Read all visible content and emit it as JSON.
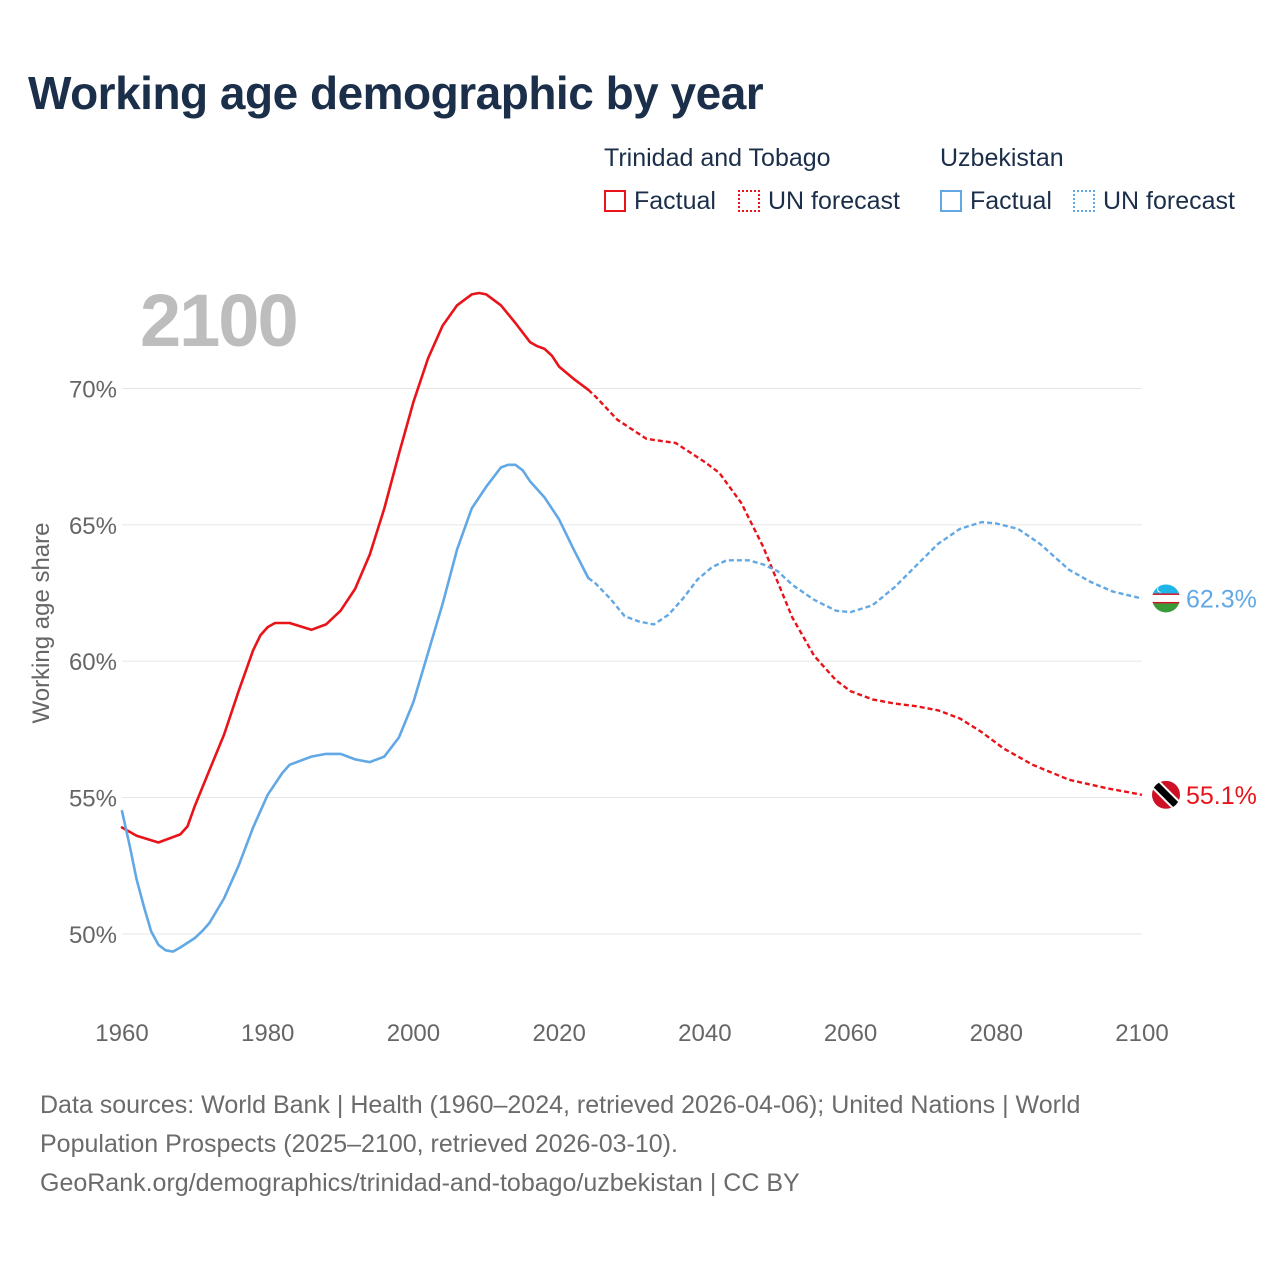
{
  "title": "Working age demographic by year",
  "current_year": "2100",
  "ylabel": "Working age share",
  "legend": {
    "groups": [
      {
        "name": "Trinidad and Tobago",
        "factual": "Factual",
        "forecast": "UN forecast",
        "color": "#e8141a"
      },
      {
        "name": "Uzbekistan",
        "factual": "Factual",
        "forecast": "UN forecast",
        "color": "#62a8e5"
      }
    ]
  },
  "end_labels": {
    "uzbekistan": "62.3%",
    "trinidad": "55.1%"
  },
  "footer": {
    "line1": "Data sources: World Bank | Health (1960–2024, retrieved 2026-04-06); United Nations | World",
    "line2": "Population Prospects (2025–2100, retrieved 2026-03-10).",
    "line3": "GeoRank.org/demographics/trinidad-and-tobago/uzbekistan | CC BY"
  },
  "colors": {
    "trinidad": "#e8141a",
    "uzbekistan": "#62a8e5",
    "grid": "#e6e6e6",
    "axis_text": "#666666"
  },
  "chart_data": {
    "type": "line",
    "title": "Working age demographic by year",
    "xlabel": "",
    "ylabel": "Working age share",
    "xlim": [
      1960,
      2100
    ],
    "ylim": [
      48,
      74
    ],
    "x_ticks": [
      1960,
      1980,
      2000,
      2020,
      2040,
      2060,
      2080,
      2100
    ],
    "y_ticks": [
      50,
      55,
      60,
      65,
      70
    ],
    "y_tick_labels": [
      "50%",
      "55%",
      "60%",
      "65%",
      "70%"
    ],
    "factual_range": [
      1960,
      2024
    ],
    "forecast_range": [
      2025,
      2100
    ],
    "series": [
      {
        "name": "Trinidad and Tobago",
        "points": [
          [
            1960,
            53.9
          ],
          [
            1962,
            53.6
          ],
          [
            1965,
            53.35
          ],
          [
            1968,
            53.65
          ],
          [
            1969,
            53.95
          ],
          [
            1970,
            54.7
          ],
          [
            1972,
            56.0
          ],
          [
            1974,
            57.3
          ],
          [
            1976,
            58.9
          ],
          [
            1978,
            60.4
          ],
          [
            1979,
            60.95
          ],
          [
            1980,
            61.25
          ],
          [
            1981,
            61.4
          ],
          [
            1983,
            61.4
          ],
          [
            1986,
            61.15
          ],
          [
            1988,
            61.35
          ],
          [
            1990,
            61.85
          ],
          [
            1992,
            62.65
          ],
          [
            1994,
            63.9
          ],
          [
            1996,
            65.6
          ],
          [
            1998,
            67.6
          ],
          [
            2000,
            69.5
          ],
          [
            2002,
            71.1
          ],
          [
            2004,
            72.3
          ],
          [
            2006,
            73.05
          ],
          [
            2008,
            73.45
          ],
          [
            2009,
            73.5
          ],
          [
            2010,
            73.45
          ],
          [
            2012,
            73.05
          ],
          [
            2014,
            72.4
          ],
          [
            2016,
            71.7
          ],
          [
            2017,
            71.55
          ],
          [
            2018,
            71.45
          ],
          [
            2019,
            71.2
          ],
          [
            2020,
            70.8
          ],
          [
            2022,
            70.35
          ],
          [
            2024,
            69.95
          ],
          [
            2025,
            69.7
          ],
          [
            2028,
            68.85
          ],
          [
            2032,
            68.15
          ],
          [
            2036,
            68.0
          ],
          [
            2040,
            67.3
          ],
          [
            2042,
            66.9
          ],
          [
            2045,
            65.8
          ],
          [
            2048,
            64.2
          ],
          [
            2050,
            62.9
          ],
          [
            2052,
            61.6
          ],
          [
            2055,
            60.2
          ],
          [
            2058,
            59.3
          ],
          [
            2060,
            58.9
          ],
          [
            2063,
            58.6
          ],
          [
            2066,
            58.45
          ],
          [
            2069,
            58.35
          ],
          [
            2072,
            58.2
          ],
          [
            2075,
            57.9
          ],
          [
            2078,
            57.4
          ],
          [
            2081,
            56.8
          ],
          [
            2085,
            56.2
          ],
          [
            2090,
            55.65
          ],
          [
            2095,
            55.35
          ],
          [
            2100,
            55.1
          ]
        ]
      },
      {
        "name": "Uzbekistan",
        "points": [
          [
            1960,
            54.5
          ],
          [
            1961,
            53.3
          ],
          [
            1962,
            52.0
          ],
          [
            1963,
            51.0
          ],
          [
            1964,
            50.1
          ],
          [
            1965,
            49.6
          ],
          [
            1966,
            49.4
          ],
          [
            1967,
            49.35
          ],
          [
            1968,
            49.5
          ],
          [
            1970,
            49.85
          ],
          [
            1971,
            50.1
          ],
          [
            1972,
            50.4
          ],
          [
            1974,
            51.3
          ],
          [
            1976,
            52.5
          ],
          [
            1978,
            53.9
          ],
          [
            1980,
            55.1
          ],
          [
            1982,
            55.9
          ],
          [
            1983,
            56.2
          ],
          [
            1986,
            56.5
          ],
          [
            1988,
            56.6
          ],
          [
            1990,
            56.6
          ],
          [
            1992,
            56.4
          ],
          [
            1994,
            56.3
          ],
          [
            1996,
            56.5
          ],
          [
            1998,
            57.2
          ],
          [
            2000,
            58.5
          ],
          [
            2002,
            60.3
          ],
          [
            2004,
            62.1
          ],
          [
            2006,
            64.1
          ],
          [
            2008,
            65.6
          ],
          [
            2010,
            66.4
          ],
          [
            2012,
            67.1
          ],
          [
            2013,
            67.2
          ],
          [
            2014,
            67.2
          ],
          [
            2015,
            67.0
          ],
          [
            2016,
            66.6
          ],
          [
            2018,
            66.0
          ],
          [
            2020,
            65.2
          ],
          [
            2022,
            64.1
          ],
          [
            2024,
            63.05
          ],
          [
            2025,
            62.85
          ],
          [
            2027,
            62.3
          ],
          [
            2029,
            61.65
          ],
          [
            2031,
            61.45
          ],
          [
            2033,
            61.35
          ],
          [
            2035,
            61.7
          ],
          [
            2037,
            62.3
          ],
          [
            2039,
            63.0
          ],
          [
            2041,
            63.45
          ],
          [
            2043,
            63.7
          ],
          [
            2046,
            63.7
          ],
          [
            2048,
            63.55
          ],
          [
            2050,
            63.3
          ],
          [
            2052,
            62.8
          ],
          [
            2055,
            62.25
          ],
          [
            2058,
            61.85
          ],
          [
            2060,
            61.8
          ],
          [
            2063,
            62.05
          ],
          [
            2066,
            62.7
          ],
          [
            2069,
            63.5
          ],
          [
            2072,
            64.3
          ],
          [
            2075,
            64.85
          ],
          [
            2078,
            65.1
          ],
          [
            2080,
            65.05
          ],
          [
            2083,
            64.85
          ],
          [
            2086,
            64.3
          ],
          [
            2090,
            63.35
          ],
          [
            2093,
            62.9
          ],
          [
            2096,
            62.55
          ],
          [
            2100,
            62.3
          ]
        ]
      }
    ]
  }
}
